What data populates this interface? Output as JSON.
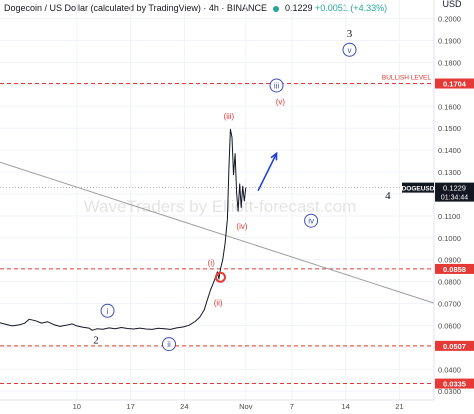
{
  "header": {
    "title": "Dogecoin / US Dollar (calculated by TradingView) · 4h · BINANCE",
    "price": "0.1229",
    "change": "+0.0051 (+4.33%)",
    "currency": "USD"
  },
  "watermark": "WaveTraders by Elliott-forecast.com",
  "chart_data": {
    "type": "line",
    "symbol": "DOGEUSD",
    "x_tick_labels": [
      {
        "label": "10",
        "t": 10
      },
      {
        "label": "17",
        "t": 17
      },
      {
        "label": "24",
        "t": 24
      },
      {
        "label": "Nov",
        "t": 32
      },
      {
        "label": "7",
        "t": 38
      },
      {
        "label": "14",
        "t": 45
      },
      {
        "label": "21",
        "t": 52
      }
    ],
    "x_range": [
      0,
      56.5
    ],
    "y_range": [
      0.026,
      0.2085
    ],
    "y_ticks": [
      0.2,
      0.19,
      0.18,
      0.17,
      0.16,
      0.15,
      0.14,
      0.13,
      0.12,
      0.11,
      0.1,
      0.09,
      0.08,
      0.07,
      0.06,
      0.05,
      0.04,
      0.03
    ],
    "y_tick_labels": [
      "0.2000",
      "0.1900",
      "0.1800",
      "0.1700",
      "0.1600",
      "0.1500",
      "0.1400",
      "0.1300",
      "0.1200",
      "0.1100",
      "0.1000",
      "0.0900",
      "0.0800",
      "0.0700",
      "0.0600",
      "0.0500",
      "0.0400",
      "0.0300"
    ],
    "price_series": [
      [
        0,
        0.0612
      ],
      [
        0.8,
        0.0605
      ],
      [
        1.6,
        0.0598
      ],
      [
        2.4,
        0.0602
      ],
      [
        3.2,
        0.061
      ],
      [
        3.8,
        0.0628
      ],
      [
        4.6,
        0.0622
      ],
      [
        5.4,
        0.0611
      ],
      [
        6.2,
        0.0617
      ],
      [
        7.0,
        0.0604
      ],
      [
        7.8,
        0.0596
      ],
      [
        8.6,
        0.0601
      ],
      [
        9.4,
        0.0607
      ],
      [
        10.0,
        0.0598
      ],
      [
        10.8,
        0.0592
      ],
      [
        11.6,
        0.0588
      ],
      [
        12.0,
        0.0578
      ],
      [
        12.6,
        0.0585
      ],
      [
        13.4,
        0.0583
      ],
      [
        14.2,
        0.0589
      ],
      [
        15.0,
        0.0585
      ],
      [
        15.8,
        0.0591
      ],
      [
        16.6,
        0.0586
      ],
      [
        17.4,
        0.0584
      ],
      [
        18.2,
        0.0588
      ],
      [
        19.0,
        0.0584
      ],
      [
        19.8,
        0.0582
      ],
      [
        20.6,
        0.0587
      ],
      [
        21.4,
        0.0585
      ],
      [
        22.2,
        0.0582
      ],
      [
        23.0,
        0.0589
      ],
      [
        23.8,
        0.0593
      ],
      [
        24.6,
        0.0601
      ],
      [
        25.4,
        0.0618
      ],
      [
        26.0,
        0.0638
      ],
      [
        26.6,
        0.0672
      ],
      [
        27.0,
        0.0718
      ],
      [
        27.4,
        0.0762
      ],
      [
        27.8,
        0.0795
      ],
      [
        28.1,
        0.0823
      ],
      [
        28.3,
        0.0845
      ],
      [
        28.5,
        0.0812
      ],
      [
        28.7,
        0.0858
      ],
      [
        29.0,
        0.0902
      ],
      [
        29.3,
        0.0975
      ],
      [
        29.6,
        0.1085
      ],
      [
        29.8,
        0.1315
      ],
      [
        30.0,
        0.1495
      ],
      [
        30.2,
        0.1458
      ],
      [
        30.4,
        0.1288
      ],
      [
        30.6,
        0.1384
      ],
      [
        30.8,
        0.1205
      ],
      [
        31.0,
        0.1122
      ],
      [
        31.2,
        0.1246
      ],
      [
        31.4,
        0.1138
      ],
      [
        31.6,
        0.1235
      ],
      [
        31.8,
        0.1168
      ],
      [
        32.0,
        0.1229
      ]
    ],
    "horizontal_levels": [
      {
        "value": 0.1704,
        "label": "0.1704",
        "text": "BULLISH LEVEL",
        "color": "#e53935"
      },
      {
        "value": 0.0858,
        "label": "0.0858",
        "text": "",
        "color": "#e53935"
      },
      {
        "value": 0.0507,
        "label": "0.0507",
        "text": "",
        "color": "#e53935"
      },
      {
        "value": 0.0335,
        "label": "0.0335",
        "text": "",
        "color": "#e53935"
      }
    ],
    "current_price": {
      "value": 0.1229,
      "symbol_label": "DOGEUSD",
      "price_label": "0.1229",
      "countdown": "01:34:44"
    },
    "trendline": {
      "from": [
        0,
        0.1345
      ],
      "to": [
        56.5,
        0.0702
      ],
      "color": "#9e9e9e"
    },
    "wave_labels": [
      {
        "text": "i",
        "t": 14,
        "y": 0.0667,
        "style": "circle",
        "color": "#3f51b5"
      },
      {
        "text": "ii",
        "t": 22,
        "y": 0.0515,
        "style": "circle",
        "color": "#3f51b5"
      },
      {
        "text": "iii",
        "t": 36,
        "y": 0.1695,
        "style": "circle",
        "color": "#3f51b5"
      },
      {
        "text": "iv",
        "t": 40.5,
        "y": 0.1078,
        "style": "circle",
        "color": "#3f51b5"
      },
      {
        "text": "v",
        "t": 45.5,
        "y": 0.1858,
        "style": "circle",
        "color": "#3f51b5"
      },
      {
        "text": "(i)",
        "t": 27.5,
        "y": 0.0888,
        "style": "paren",
        "color": "#e53935"
      },
      {
        "text": "(ii)",
        "t": 28.4,
        "y": 0.0704,
        "style": "paren",
        "color": "#e53935"
      },
      {
        "text": "(iii)",
        "t": 29.8,
        "y": 0.1555,
        "style": "paren",
        "color": "#e53935"
      },
      {
        "text": "(iv)",
        "t": 31.5,
        "y": 0.1055,
        "style": "paren",
        "color": "#e53935"
      },
      {
        "text": "(v)",
        "t": 36.5,
        "y": 0.1622,
        "style": "paren",
        "color": "#e53935"
      },
      {
        "text": "2",
        "t": 12.5,
        "y": 0.0535,
        "style": "plain",
        "color": "#131722"
      },
      {
        "text": "3",
        "t": 45.5,
        "y": 0.1935,
        "style": "plain",
        "color": "#131722"
      },
      {
        "text": "4",
        "t": 50.5,
        "y": 0.1195,
        "style": "plain",
        "color": "#131722"
      }
    ],
    "arrow": {
      "from": [
        33.6,
        0.1215
      ],
      "to": [
        36.0,
        0.1385
      ],
      "color": "#1e40d6"
    },
    "circle_marker": {
      "t": 28.7,
      "y": 0.082,
      "color": "#e53935"
    }
  }
}
